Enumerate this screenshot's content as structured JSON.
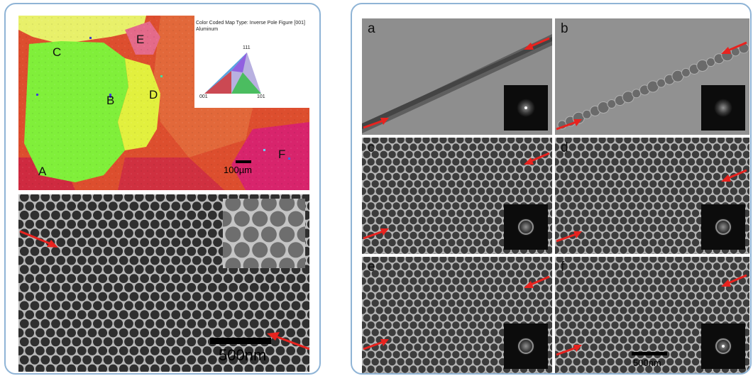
{
  "left_figure": {
    "ebsd_map": {
      "legend_title": "Color Coded Map Type: Inverse Pole Figure [001]",
      "legend_material": "Aluminum",
      "triangle_labels": {
        "top": "111",
        "bottom_left": "001",
        "bottom_right": "101"
      },
      "grain_labels": [
        "A",
        "B",
        "C",
        "D",
        "E",
        "F"
      ],
      "scale_bar_text": "100µm"
    },
    "sem_image": {
      "scale_bar_text": "500nm",
      "pore_color": "#2f2f2f",
      "wall_color": "#b8b8b8"
    }
  },
  "right_figure": {
    "panels": [
      {
        "label": "a"
      },
      {
        "label": "b"
      },
      {
        "label": "c"
      },
      {
        "label": "d"
      },
      {
        "label": "e"
      },
      {
        "label": "f"
      }
    ],
    "scale_bar_text": "500nm"
  },
  "colors": {
    "frame_border": "#8fb4d6",
    "arrow": "#e8231f",
    "grain_red": "#d8432c",
    "grain_green": "#7ff03a",
    "grain_yellow": "#e4f23e",
    "grain_magenta": "#d61f6a"
  }
}
